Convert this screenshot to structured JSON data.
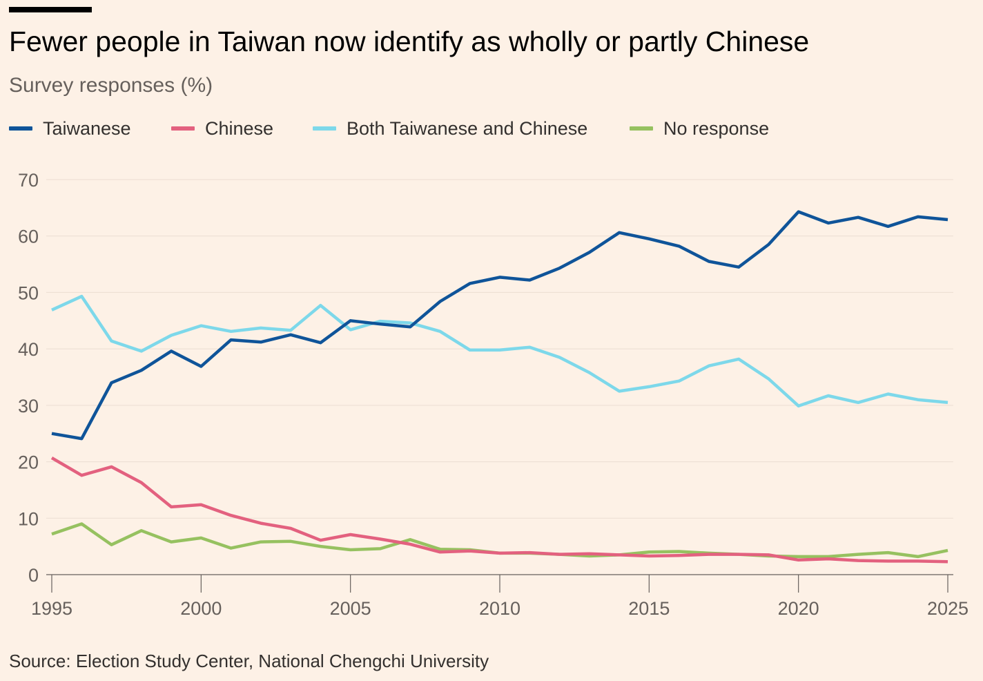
{
  "header": {
    "title": "Fewer people in Taiwan now identify as wholly or partly Chinese",
    "subtitle": "Survey responses (%)"
  },
  "legend": [
    {
      "label": "Taiwanese",
      "color": "#0f5499"
    },
    {
      "label": "Chinese",
      "color": "#e3617f"
    },
    {
      "label": "Both Taiwanese and Chinese",
      "color": "#7dd8ea"
    },
    {
      "label": "No response",
      "color": "#96c160"
    }
  ],
  "footer": {
    "source": "Source: Election Study Center, National Chengchi University"
  },
  "chart_data": {
    "type": "line",
    "title": "Fewer people in Taiwan now identify as wholly or partly Chinese",
    "subtitle": "Survey responses (%)",
    "xlabel": "",
    "ylabel": "",
    "xlim": [
      1995,
      2025
    ],
    "ylim": [
      0,
      70
    ],
    "yticks": [
      0,
      10,
      20,
      30,
      40,
      50,
      60,
      70
    ],
    "xticks": [
      1995,
      2000,
      2005,
      2010,
      2015,
      2020,
      2025
    ],
    "grid": true,
    "legend_position": "top-left",
    "x": [
      1995,
      1996,
      1997,
      1998,
      1999,
      2000,
      2001,
      2002,
      2003,
      2004,
      2005,
      2006,
      2007,
      2008,
      2009,
      2010,
      2011,
      2012,
      2013,
      2014,
      2015,
      2016,
      2017,
      2018,
      2019,
      2020,
      2021,
      2022,
      2023,
      2024,
      2025
    ],
    "series": [
      {
        "name": "Taiwanese",
        "color": "#0f5499",
        "values": [
          25.0,
          24.1,
          34.0,
          36.2,
          39.6,
          36.9,
          41.6,
          41.2,
          42.5,
          41.1,
          45.0,
          44.4,
          43.9,
          48.4,
          51.6,
          52.7,
          52.2,
          54.3,
          57.1,
          60.6,
          59.5,
          58.2,
          55.5,
          54.5,
          58.5,
          64.3,
          62.3,
          63.3,
          61.7,
          63.4,
          62.9
        ]
      },
      {
        "name": "Chinese",
        "color": "#e3617f",
        "values": [
          20.7,
          17.6,
          19.1,
          16.3,
          12.0,
          12.4,
          10.5,
          9.1,
          8.2,
          6.1,
          7.1,
          6.3,
          5.4,
          4.0,
          4.2,
          3.8,
          3.9,
          3.6,
          3.7,
          3.5,
          3.3,
          3.4,
          3.6,
          3.6,
          3.5,
          2.6,
          2.8,
          2.5,
          2.4,
          2.4,
          2.3
        ]
      },
      {
        "name": "Both Taiwanese and Chinese",
        "color": "#7dd8ea",
        "values": [
          46.9,
          49.3,
          41.4,
          39.6,
          42.4,
          44.1,
          43.1,
          43.7,
          43.3,
          47.7,
          43.4,
          44.9,
          44.6,
          43.1,
          39.8,
          39.8,
          40.3,
          38.5,
          35.8,
          32.5,
          33.3,
          34.3,
          37.0,
          38.2,
          34.7,
          29.9,
          31.7,
          30.5,
          32.0,
          31.0,
          30.5
        ]
      },
      {
        "name": "No response",
        "color": "#96c160",
        "values": [
          7.2,
          9.0,
          5.3,
          7.8,
          5.8,
          6.5,
          4.7,
          5.8,
          5.9,
          5.0,
          4.4,
          4.6,
          6.2,
          4.5,
          4.4,
          3.8,
          3.8,
          3.6,
          3.3,
          3.5,
          4.0,
          4.1,
          3.8,
          3.6,
          3.3,
          3.2,
          3.2,
          3.6,
          3.9,
          3.2,
          4.3
        ]
      }
    ]
  }
}
